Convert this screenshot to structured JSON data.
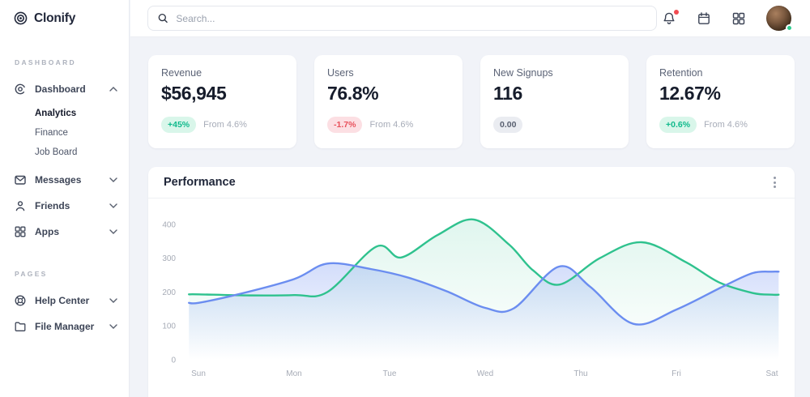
{
  "brand": {
    "name": "Clonify"
  },
  "topbar": {
    "search_placeholder": "Search...",
    "icons": [
      "search-icon",
      "bell-icon",
      "calendar-icon",
      "apps-grid-icon"
    ],
    "bell_has_notification": true,
    "avatar_status": "online"
  },
  "sidebar": {
    "sections": [
      {
        "label": "DASHBOARD",
        "items": [
          {
            "label": "Dashboard",
            "icon": "dashboard-spiral-icon",
            "expanded": true,
            "children": [
              {
                "label": "Analytics",
                "active": true
              },
              {
                "label": "Finance",
                "active": false
              },
              {
                "label": "Job Board",
                "active": false
              }
            ]
          },
          {
            "label": "Messages",
            "icon": "envelope-icon"
          },
          {
            "label": "Friends",
            "icon": "person-icon"
          },
          {
            "label": "Apps",
            "icon": "grid-icon"
          }
        ]
      },
      {
        "label": "PAGES",
        "items": [
          {
            "label": "Help Center",
            "icon": "lifebuoy-icon"
          },
          {
            "label": "File Manager",
            "icon": "folder-icon"
          }
        ]
      }
    ]
  },
  "stats": [
    {
      "title": "Revenue",
      "value": "$56,945",
      "badge": "+45%",
      "badge_type": "positive",
      "note": "From 4.6%"
    },
    {
      "title": "Users",
      "value": "76.8%",
      "badge": "-1.7%",
      "badge_type": "negative",
      "note": "From 4.6%"
    },
    {
      "title": "New Signups",
      "value": "116",
      "badge": "0.00",
      "badge_type": "neutral",
      "note": ""
    },
    {
      "title": "Retention",
      "value": "12.67%",
      "badge": "+0.6%",
      "badge_type": "positive",
      "note": "From 4.6%"
    }
  ],
  "performance": {
    "title": "Performance"
  },
  "chart_data": {
    "type": "area",
    "title": "Performance",
    "categories": [
      "Sun",
      "Mon",
      "Tue",
      "Wed",
      "Thu",
      "Fri",
      "Sat"
    ],
    "yticks": [
      0,
      100,
      200,
      300,
      400
    ],
    "ylim": [
      0,
      450
    ],
    "grid": false,
    "legend": false,
    "series": [
      {
        "name": "series-green",
        "color": "#2fc28e",
        "values_at_days": [
          193,
          191,
          318,
          392,
          262,
          305,
          192
        ],
        "points": [
          [
            0,
            193
          ],
          [
            0.5,
            190
          ],
          [
            1,
            191
          ],
          [
            1.35,
            200
          ],
          [
            1.86,
            334
          ],
          [
            2.12,
            302
          ],
          [
            2.5,
            368
          ],
          [
            2.88,
            414
          ],
          [
            3.25,
            340
          ],
          [
            3.5,
            264
          ],
          [
            3.78,
            222
          ],
          [
            4.2,
            300
          ],
          [
            4.64,
            347
          ],
          [
            5.1,
            288
          ],
          [
            5.45,
            228
          ],
          [
            5.8,
            197
          ],
          [
            6,
            192
          ]
        ]
      },
      {
        "name": "series-blue",
        "color": "#6b8df0",
        "values_at_days": [
          168,
          238,
          256,
          153,
          232,
          148,
          260
        ],
        "points": [
          [
            0,
            168
          ],
          [
            0.4,
            192
          ],
          [
            1,
            238
          ],
          [
            1.35,
            284
          ],
          [
            1.8,
            268
          ],
          [
            2.2,
            242
          ],
          [
            2.6,
            202
          ],
          [
            3,
            153
          ],
          [
            3.3,
            152
          ],
          [
            3.77,
            275
          ],
          [
            4.1,
            215
          ],
          [
            4.55,
            106
          ],
          [
            5,
            148
          ],
          [
            5.5,
            218
          ],
          [
            5.8,
            256
          ],
          [
            6,
            260
          ]
        ]
      }
    ]
  },
  "colors": {
    "accent_green": "#2fc28e",
    "accent_blue": "#6b8df0",
    "badge_positive_bg": "#d9f6ea",
    "badge_positive_text": "#10ba8c",
    "badge_negative_bg": "#fcdfe3",
    "badge_negative_text": "#e8505b",
    "notification_red": "#f14b52",
    "online_green": "#2ecd90",
    "main_bg": "#f1f3f8"
  }
}
